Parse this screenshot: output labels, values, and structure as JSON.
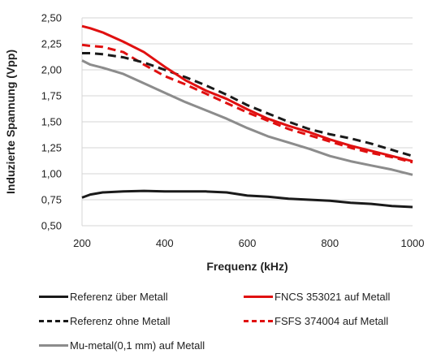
{
  "chart_data": {
    "type": "line",
    "xlabel": "Frequenz (kHz)",
    "ylabel": "Induzierte Spannung (Vpp)",
    "xlim": [
      200,
      1000
    ],
    "ylim": [
      0.5,
      2.5
    ],
    "x_ticks": [
      "200",
      "400",
      "600",
      "800",
      "1000"
    ],
    "y_ticks": [
      "0,50",
      "0,75",
      "1,00",
      "1,25",
      "1,50",
      "1,75",
      "2,00",
      "2,25",
      "2,50"
    ],
    "grid": "horizontal",
    "series": [
      {
        "name": "Referenz über Metall",
        "color": "#1a1a1a",
        "dash": "solid",
        "x": [
          200,
          220,
          250,
          300,
          350,
          400,
          450,
          500,
          550,
          600,
          650,
          700,
          750,
          800,
          850,
          900,
          950,
          1000
        ],
        "y": [
          0.77,
          0.8,
          0.82,
          0.83,
          0.835,
          0.83,
          0.83,
          0.83,
          0.82,
          0.79,
          0.78,
          0.76,
          0.75,
          0.74,
          0.72,
          0.71,
          0.69,
          0.68
        ]
      },
      {
        "name": "FNCS 353021 auf Metall",
        "color": "#e01010",
        "dash": "solid",
        "x": [
          200,
          220,
          250,
          300,
          350,
          400,
          450,
          500,
          550,
          600,
          650,
          700,
          750,
          800,
          850,
          900,
          950,
          1000
        ],
        "y": [
          2.42,
          2.4,
          2.36,
          2.27,
          2.17,
          2.03,
          1.9,
          1.8,
          1.72,
          1.62,
          1.53,
          1.46,
          1.4,
          1.33,
          1.27,
          1.22,
          1.17,
          1.12
        ]
      },
      {
        "name": "Referenz ohne Metall",
        "color": "#1a1a1a",
        "dash": "dashed",
        "x": [
          200,
          220,
          250,
          300,
          350,
          400,
          450,
          500,
          550,
          600,
          650,
          700,
          750,
          800,
          850,
          900,
          950,
          1000
        ],
        "y": [
          2.16,
          2.16,
          2.15,
          2.12,
          2.07,
          2.0,
          1.93,
          1.85,
          1.76,
          1.66,
          1.58,
          1.5,
          1.43,
          1.38,
          1.34,
          1.29,
          1.23,
          1.17
        ]
      },
      {
        "name": "FSFS 374004 auf Metall",
        "color": "#e01010",
        "dash": "dashed",
        "x": [
          200,
          220,
          250,
          300,
          350,
          400,
          450,
          500,
          550,
          600,
          650,
          700,
          750,
          800,
          850,
          900,
          950,
          1000
        ],
        "y": [
          2.24,
          2.23,
          2.22,
          2.17,
          2.05,
          1.94,
          1.86,
          1.77,
          1.68,
          1.59,
          1.51,
          1.43,
          1.37,
          1.31,
          1.25,
          1.2,
          1.16,
          1.11
        ]
      },
      {
        "name": "Mu-metal(0,1 mm) auf Metall",
        "color": "#8c8c8c",
        "dash": "solid",
        "x": [
          200,
          220,
          250,
          300,
          350,
          400,
          450,
          500,
          550,
          600,
          650,
          700,
          750,
          800,
          850,
          900,
          950,
          1000
        ],
        "y": [
          2.09,
          2.05,
          2.02,
          1.96,
          1.87,
          1.78,
          1.69,
          1.61,
          1.53,
          1.44,
          1.36,
          1.3,
          1.24,
          1.17,
          1.12,
          1.08,
          1.04,
          0.99
        ]
      }
    ]
  }
}
